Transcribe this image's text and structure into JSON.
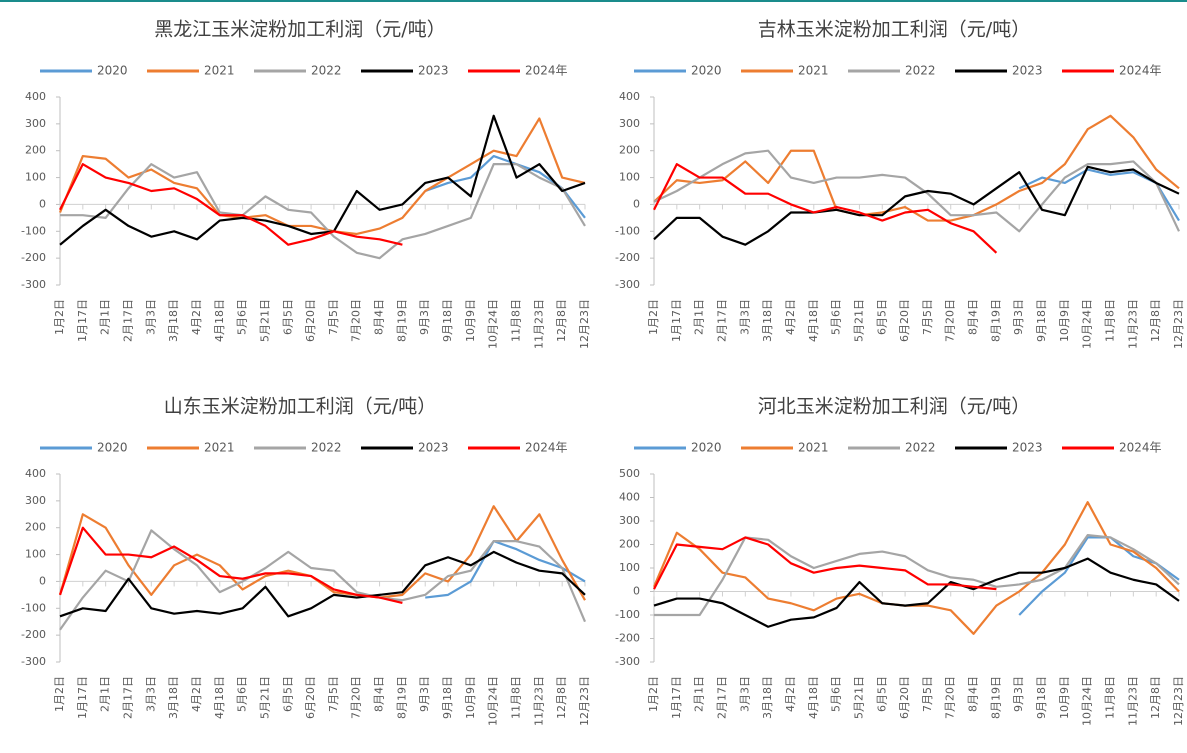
{
  "chart_data": [
    {
      "type": "line",
      "title": "黑龙江玉米淀粉加工利润（元/吨）",
      "categories": [
        "1月2日",
        "1月17日",
        "2月1日",
        "2月17日",
        "3月3日",
        "3月18日",
        "4月2日",
        "4月18日",
        "5月6日",
        "5月21日",
        "6月5日",
        "6月20日",
        "7月5日",
        "7月20日",
        "8月4日",
        "8月19日",
        "9月3日",
        "9月18日",
        "10月9日",
        "10月24日",
        "11月8日",
        "11月23日",
        "12月8日",
        "12月23日"
      ],
      "ylim": [
        -300,
        400
      ],
      "yticks": [
        -300,
        -200,
        -100,
        0,
        100,
        200,
        300,
        400
      ],
      "series": [
        {
          "name": "2020",
          "color": "#5b9bd5",
          "values": [
            null,
            null,
            null,
            null,
            null,
            null,
            null,
            null,
            null,
            null,
            null,
            null,
            null,
            null,
            null,
            null,
            50,
            80,
            100,
            180,
            150,
            120,
            60,
            -50
          ]
        },
        {
          "name": "2021",
          "color": "#ed7d31",
          "values": [
            -30,
            180,
            170,
            100,
            130,
            80,
            60,
            -40,
            -50,
            -40,
            -80,
            -80,
            -100,
            -110,
            -90,
            -50,
            50,
            100,
            150,
            200,
            180,
            320,
            100,
            80
          ]
        },
        {
          "name": "2022",
          "color": "#a5a5a5",
          "values": [
            -40,
            -40,
            -50,
            60,
            150,
            100,
            120,
            -30,
            -40,
            30,
            -20,
            -30,
            -120,
            -180,
            -200,
            -130,
            -110,
            -80,
            -50,
            150,
            150,
            100,
            60,
            -80
          ]
        },
        {
          "name": "2023",
          "color": "#000000",
          "values": [
            -150,
            -80,
            -20,
            -80,
            -120,
            -100,
            -130,
            -60,
            -50,
            -60,
            -80,
            -110,
            -100,
            50,
            -20,
            0,
            80,
            100,
            30,
            330,
            100,
            150,
            50,
            80
          ]
        },
        {
          "name": "2024年",
          "color": "#ff0000",
          "values": [
            -20,
            150,
            100,
            80,
            50,
            60,
            20,
            -40,
            -40,
            -80,
            -150,
            -130,
            -100,
            -120,
            -130,
            -150,
            null,
            null,
            null,
            null,
            null,
            null,
            null,
            null
          ]
        }
      ]
    },
    {
      "type": "line",
      "title": "吉林玉米淀粉加工利润（元/吨）",
      "categories": [
        "1月2日",
        "1月17日",
        "2月1日",
        "2月17日",
        "3月3日",
        "3月18日",
        "4月2日",
        "4月18日",
        "5月6日",
        "5月21日",
        "6月5日",
        "6月20日",
        "7月5日",
        "7月20日",
        "8月4日",
        "8月19日",
        "9月3日",
        "9月18日",
        "10月9日",
        "10月24日",
        "11月8日",
        "11月23日",
        "12月8日",
        "12月23日"
      ],
      "ylim": [
        -300,
        400
      ],
      "yticks": [
        -300,
        -200,
        -100,
        0,
        100,
        200,
        300,
        400
      ],
      "series": [
        {
          "name": "2020",
          "color": "#5b9bd5",
          "values": [
            null,
            null,
            null,
            null,
            null,
            null,
            null,
            null,
            null,
            null,
            null,
            null,
            null,
            null,
            null,
            null,
            60,
            100,
            80,
            130,
            110,
            120,
            80,
            -60
          ]
        },
        {
          "name": "2021",
          "color": "#ed7d31",
          "values": [
            10,
            90,
            80,
            90,
            160,
            80,
            200,
            200,
            -20,
            -40,
            -30,
            -10,
            -60,
            -60,
            -40,
            0,
            50,
            80,
            150,
            280,
            330,
            250,
            130,
            60
          ]
        },
        {
          "name": "2022",
          "color": "#a5a5a5",
          "values": [
            10,
            50,
            100,
            150,
            190,
            200,
            100,
            80,
            100,
            100,
            110,
            100,
            40,
            -40,
            -40,
            -30,
            -100,
            0,
            100,
            150,
            150,
            160,
            80,
            -100
          ]
        },
        {
          "name": "2023",
          "color": "#000000",
          "values": [
            -130,
            -50,
            -50,
            -120,
            -150,
            -100,
            -30,
            -30,
            -20,
            -40,
            -40,
            30,
            50,
            40,
            0,
            60,
            120,
            -20,
            -40,
            140,
            120,
            130,
            80,
            40
          ]
        },
        {
          "name": "2024年",
          "color": "#ff0000",
          "values": [
            -20,
            150,
            100,
            100,
            40,
            40,
            0,
            -30,
            -10,
            -30,
            -60,
            -30,
            -20,
            -70,
            -100,
            -180,
            null,
            null,
            null,
            null,
            null,
            null,
            null,
            null
          ]
        }
      ]
    },
    {
      "type": "line",
      "title": "山东玉米淀粉加工利润（元/吨）",
      "categories": [
        "1月2日",
        "1月17日",
        "2月1日",
        "2月17日",
        "3月3日",
        "3月18日",
        "4月2日",
        "4月18日",
        "5月6日",
        "5月21日",
        "6月5日",
        "6月20日",
        "7月5日",
        "7月20日",
        "8月4日",
        "8月19日",
        "9月3日",
        "9月18日",
        "10月9日",
        "10月24日",
        "11月8日",
        "11月23日",
        "12月8日",
        "12月23日"
      ],
      "ylim": [
        -300,
        400
      ],
      "yticks": [
        -300,
        -200,
        -100,
        0,
        100,
        200,
        300,
        400
      ],
      "series": [
        {
          "name": "2020",
          "color": "#5b9bd5",
          "values": [
            null,
            null,
            null,
            null,
            null,
            null,
            null,
            null,
            null,
            null,
            null,
            null,
            null,
            null,
            null,
            null,
            -60,
            -50,
            0,
            150,
            120,
            80,
            50,
            0
          ]
        },
        {
          "name": "2021",
          "color": "#ed7d31",
          "values": [
            -50,
            250,
            200,
            60,
            -50,
            60,
            100,
            60,
            -30,
            20,
            40,
            20,
            -40,
            -50,
            -60,
            -50,
            30,
            0,
            100,
            280,
            150,
            250,
            80,
            -70
          ]
        },
        {
          "name": "2022",
          "color": "#a5a5a5",
          "values": [
            -180,
            -60,
            40,
            0,
            190,
            120,
            60,
            -40,
            0,
            50,
            110,
            50,
            40,
            -40,
            -60,
            -70,
            -50,
            20,
            40,
            150,
            150,
            130,
            50,
            -150
          ]
        },
        {
          "name": "2023",
          "color": "#000000",
          "values": [
            -130,
            -100,
            -110,
            10,
            -100,
            -120,
            -110,
            -120,
            -100,
            -20,
            -130,
            -100,
            -50,
            -60,
            -50,
            -40,
            60,
            90,
            60,
            110,
            70,
            40,
            30,
            -50
          ]
        },
        {
          "name": "2024年",
          "color": "#ff0000",
          "values": [
            -50,
            200,
            100,
            100,
            90,
            130,
            80,
            20,
            10,
            30,
            30,
            20,
            -30,
            -50,
            -60,
            -80,
            null,
            null,
            null,
            null,
            null,
            null,
            null,
            null
          ]
        }
      ]
    },
    {
      "type": "line",
      "title": "河北玉米淀粉加工利润（元/吨）",
      "categories": [
        "1月2日",
        "1月17日",
        "2月1日",
        "2月17日",
        "3月3日",
        "3月18日",
        "4月2日",
        "4月18日",
        "5月6日",
        "5月21日",
        "6月5日",
        "6月20日",
        "7月5日",
        "7月20日",
        "8月4日",
        "8月19日",
        "9月3日",
        "9月18日",
        "10月9日",
        "10月24日",
        "11月8日",
        "11月23日",
        "12月8日",
        "12月23日"
      ],
      "ylim": [
        -300,
        500
      ],
      "yticks": [
        -300,
        -200,
        -100,
        0,
        100,
        200,
        300,
        400,
        500
      ],
      "series": [
        {
          "name": "2020",
          "color": "#5b9bd5",
          "values": [
            null,
            null,
            null,
            null,
            null,
            null,
            null,
            null,
            null,
            null,
            null,
            null,
            null,
            null,
            null,
            null,
            -100,
            0,
            80,
            230,
            230,
            150,
            120,
            50
          ]
        },
        {
          "name": "2021",
          "color": "#ed7d31",
          "values": [
            20,
            250,
            180,
            80,
            60,
            -30,
            -50,
            -80,
            -30,
            -10,
            -50,
            -60,
            -60,
            -80,
            -180,
            -60,
            0,
            80,
            200,
            380,
            200,
            170,
            100,
            0
          ]
        },
        {
          "name": "2022",
          "color": "#a5a5a5",
          "values": [
            -100,
            -100,
            -100,
            50,
            230,
            220,
            150,
            100,
            130,
            160,
            170,
            150,
            90,
            60,
            50,
            20,
            30,
            50,
            100,
            240,
            230,
            180,
            120,
            30
          ]
        },
        {
          "name": "2023",
          "color": "#000000",
          "values": [
            -60,
            -30,
            -30,
            -50,
            -100,
            -150,
            -120,
            -110,
            -70,
            40,
            -50,
            -60,
            -50,
            40,
            10,
            50,
            80,
            80,
            100,
            140,
            80,
            50,
            30,
            -40
          ]
        },
        {
          "name": "2024年",
          "color": "#ff0000",
          "values": [
            10,
            200,
            190,
            180,
            230,
            200,
            120,
            80,
            100,
            110,
            100,
            90,
            30,
            30,
            20,
            10,
            null,
            null,
            null,
            null,
            null,
            null,
            null,
            null
          ]
        }
      ]
    }
  ]
}
